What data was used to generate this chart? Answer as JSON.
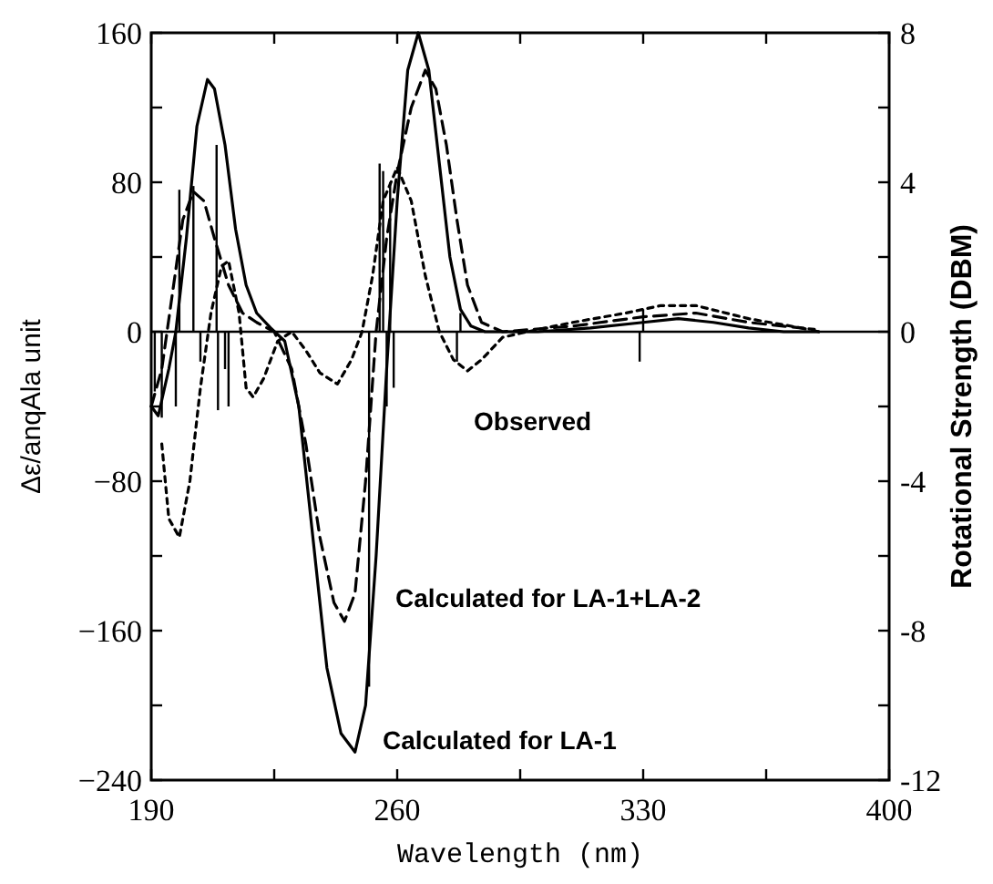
{
  "chart_data": {
    "type": "line",
    "xlabel": "Wavelength (nm)",
    "ylabel": "Δε/anqAla unit",
    "y2label": "Rotational Strength (DBM)",
    "xlim": [
      190,
      400
    ],
    "xticks": [
      190,
      {
        "value": 225,
        "label": null
      },
      260,
      {
        "value": 295,
        "label": null
      },
      330,
      {
        "value": 365,
        "label": null
      },
      400
    ],
    "ylim": [
      -240,
      160
    ],
    "yticks": [
      {
        "value": -240,
        "label": "−240"
      },
      {
        "value": -200,
        "label": null
      },
      {
        "value": -160,
        "label": "−160"
      },
      {
        "value": -120,
        "label": null
      },
      {
        "value": -80,
        "label": "−80"
      },
      {
        "value": -40,
        "label": null
      },
      0,
      {
        "value": 40,
        "label": null
      },
      80,
      {
        "value": 120,
        "label": null
      },
      160
    ],
    "y2lim": [
      -12,
      8
    ],
    "y2ticks": [
      -12,
      {
        "value": -10,
        "label": null
      },
      -8,
      {
        "value": -6,
        "label": null
      },
      -4,
      {
        "value": -2,
        "label": null
      },
      0,
      {
        "value": 2,
        "label": null
      },
      4,
      {
        "value": 6,
        "label": null
      },
      8
    ],
    "grid": false,
    "marker": "none",
    "ref_lines": [
      {
        "axis": "y",
        "value": 0,
        "color": "#000000"
      }
    ],
    "series": [
      {
        "color": "#000000",
        "line_style": "solid",
        "x": [
          190,
          192,
          195,
          197,
          200,
          203,
          206,
          208,
          211,
          214,
          217,
          220,
          224,
          228,
          232,
          236,
          240,
          244,
          248,
          251,
          254,
          257,
          260,
          263,
          266,
          269,
          272,
          275,
          278,
          281,
          285,
          300,
          315,
          330,
          340,
          350,
          360,
          370,
          380
        ],
        "values": [
          -40,
          -45,
          -20,
          0,
          50,
          110,
          135,
          130,
          100,
          55,
          25,
          10,
          2,
          -5,
          -40,
          -110,
          -180,
          -215,
          -225,
          -200,
          -120,
          -20,
          70,
          140,
          160,
          140,
          90,
          40,
          12,
          3,
          0,
          0,
          2,
          5,
          7,
          5,
          2,
          0,
          0
        ]
      },
      {
        "color": "#000000",
        "line_style": "dashed",
        "x": [
          190,
          193,
          196,
          199,
          202,
          205,
          208,
          212,
          216,
          220,
          225,
          230,
          234,
          238,
          242,
          245,
          248,
          251,
          254,
          257,
          260,
          264,
          268,
          271,
          274,
          277,
          280,
          284,
          290,
          310,
          330,
          345,
          360,
          375,
          380
        ],
        "values": [
          -40,
          -20,
          20,
          60,
          75,
          70,
          50,
          25,
          10,
          5,
          0,
          -20,
          -60,
          -110,
          -145,
          -155,
          -140,
          -80,
          0,
          50,
          85,
          120,
          140,
          130,
          100,
          60,
          25,
          5,
          0,
          3,
          8,
          10,
          5,
          2,
          0
        ]
      },
      {
        "color": "#000000",
        "line_style": "dotted",
        "x": [
          193,
          195,
          198,
          201,
          204,
          207,
          210,
          212,
          215,
          217,
          219,
          222,
          226,
          230,
          234,
          238,
          243,
          247,
          250,
          253,
          256,
          260,
          264,
          268,
          272,
          276,
          280,
          284,
          290,
          297,
          310,
          325,
          335,
          345,
          360,
          375,
          380
        ],
        "values": [
          -60,
          -100,
          -110,
          -80,
          -30,
          10,
          35,
          38,
          10,
          -30,
          -35,
          -25,
          -5,
          0,
          -10,
          -22,
          -28,
          -15,
          0,
          30,
          70,
          88,
          70,
          30,
          0,
          -15,
          -21,
          -15,
          -3,
          0,
          5,
          10,
          14,
          14,
          7,
          2,
          1
        ]
      },
      {
        "type": "bar",
        "axis": "y2",
        "color": "#000000",
        "x": [
          191,
          193,
          197,
          198,
          202,
          204,
          208.6,
          209,
          211,
          212,
          252,
          255,
          256,
          257,
          258,
          259,
          277,
          278,
          329,
          330
        ],
        "values": [
          -1.6,
          -2.3,
          -2.0,
          3.8,
          3.9,
          -0.8,
          5.0,
          -2.1,
          -1.0,
          -2.0,
          -9.5,
          4.5,
          4.3,
          -2.0,
          4.0,
          -1.5,
          -0.8,
          0.5,
          -0.8,
          0.6
        ]
      }
    ],
    "annotations": [
      "Observed",
      "Calculated for LA-1+LA-2",
      "Calculated for LA-1"
    ]
  }
}
